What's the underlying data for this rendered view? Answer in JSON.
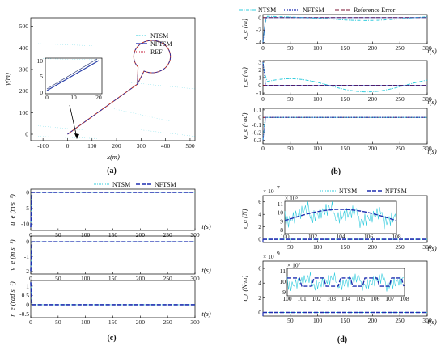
{
  "colors": {
    "ntsm": "#33ccdd",
    "nftsm": "#1f2fb0",
    "ref": "#c41e3a",
    "err": "#7a1030",
    "red_traj": "#c0392b",
    "inset_blue": "#2a3fa8",
    "inset_dark": "#1b2a6e"
  },
  "panels": [
    {
      "key": "a",
      "label": "(a)"
    },
    {
      "key": "b",
      "label": "(b)"
    },
    {
      "key": "c",
      "label": "(c)"
    },
    {
      "key": "d",
      "label": "(d)"
    }
  ],
  "panel_a": {
    "xlabel": "x(m)",
    "ylabel": "y(m)",
    "xticks": [
      "-100",
      "0",
      "100",
      "200",
      "300",
      "400",
      "500"
    ],
    "yticks": [
      "0",
      "100",
      "200",
      "300",
      "400",
      "500"
    ],
    "legend": [
      "NTSM",
      "NFTSM",
      "REF"
    ],
    "inset_xticks": [
      "0",
      "10",
      "20"
    ],
    "inset_yticks": [
      "0",
      "5",
      "10"
    ]
  },
  "panel_b": {
    "legend": [
      "NTSM",
      "NFTSM",
      "Reference Error"
    ],
    "xticks": [
      "0",
      "50",
      "100",
      "150",
      "200",
      "250",
      "300"
    ],
    "time_label": "t(s)",
    "subplots": [
      {
        "ylabel": "x_e (m)",
        "yticks": [
          "0",
          "-2",
          "-4"
        ]
      },
      {
        "ylabel": "y_e (m)",
        "yticks": [
          "3",
          "2",
          "1",
          "0",
          "-1"
        ]
      },
      {
        "ylabel": "ψ_e (rad)",
        "yticks": [
          "0.1",
          "0",
          "-0.1",
          "-0.2",
          "-0.3"
        ]
      }
    ]
  },
  "panel_c": {
    "legend": [
      "NTSM",
      "NFTSM"
    ],
    "xticks": [
      "0",
      "50",
      "100",
      "150",
      "200",
      "250",
      "300"
    ],
    "time_label": "t(s)",
    "subplots": [
      {
        "ylabel": "u_e (m·s⁻¹)",
        "yticks": [
          "0",
          "-5",
          "-10"
        ]
      },
      {
        "ylabel": "v_e (m·s⁻¹)",
        "yticks": [
          "0",
          "-1",
          "-2"
        ]
      },
      {
        "ylabel": "r_e (rad·s⁻¹)",
        "yticks": [
          "1",
          "0.5",
          "0",
          "-0.5"
        ]
      }
    ]
  },
  "panel_d": {
    "legend": [
      "NTSM",
      "NFTSM"
    ],
    "xticks": [
      "50",
      "100",
      "150",
      "200",
      "250",
      "300"
    ],
    "time_label": "t(s)",
    "subplots": [
      {
        "ylabel": "τ_u (N)",
        "multiplier": "× 10",
        "mult_exp": "7",
        "yticks": [
          "6",
          "4",
          "2",
          "0"
        ],
        "inset": {
          "xticks": [
            "100",
            "102",
            "104",
            "106",
            "108"
          ],
          "yticks": [
            "11",
            "10",
            "9",
            "8"
          ],
          "mult": "× 10⁵"
        }
      },
      {
        "ylabel": "τ_r (N·m)",
        "multiplier": "× 10",
        "mult_exp": "9",
        "yticks": [
          "6",
          "4",
          "2",
          "0"
        ],
        "inset": {
          "xticks": [
            "100",
            "101",
            "102",
            "103",
            "104",
            "105",
            "106",
            "107",
            "108"
          ],
          "yticks": [
            "11",
            "10",
            "9"
          ],
          "mult": "× 10⁷"
        }
      }
    ]
  },
  "chart_data": [
    {
      "type": "line",
      "panel": "a",
      "xlabel": "x(m)",
      "ylabel": "y(m)",
      "xlim": [
        -150,
        520
      ],
      "ylim": [
        -30,
        540
      ],
      "series": [
        {
          "name": "NTSM"
        },
        {
          "name": "NFTSM"
        },
        {
          "name": "REF"
        }
      ],
      "path_description_points": [
        [
          0,
          0
        ],
        [
          285,
          235
        ],
        [
          300,
          260
        ],
        [
          260,
          330
        ],
        [
          275,
          410
        ],
        [
          345,
          445
        ],
        [
          410,
          410
        ],
        [
          420,
          330
        ],
        [
          360,
          270
        ],
        [
          300,
          250
        ],
        [
          285,
          235
        ]
      ]
    },
    {
      "type": "line",
      "panel": "b",
      "xlim": [
        0,
        300
      ],
      "subplots": [
        {
          "ylabel": "x_e (m)",
          "ylim": [
            -4.2,
            0.5
          ],
          "series": [
            {
              "name": "NTSM",
              "x": [
                0,
                50,
                100,
                150,
                200,
                250,
                300
              ],
              "y": [
                -4,
                0.2,
                0.15,
                0.05,
                -0.3,
                -0.55,
                -0.1
              ]
            },
            {
              "name": "NFTSM",
              "x": [
                0,
                5,
                300
              ],
              "y": [
                -4,
                0,
                0
              ]
            },
            {
              "name": "Reference Error",
              "x": [
                0,
                300
              ],
              "y": [
                0,
                0
              ]
            }
          ]
        },
        {
          "ylabel": "y_e (m)",
          "ylim": [
            -1.2,
            3.2
          ],
          "series": [
            {
              "name": "NTSM",
              "x": [
                0,
                50,
                100,
                150,
                200,
                250,
                300
              ],
              "y": [
                3,
                0.9,
                0.85,
                0.3,
                -0.7,
                -0.5,
                0.7
              ]
            },
            {
              "name": "NFTSM",
              "x": [
                0,
                5,
                300
              ],
              "y": [
                3,
                0,
                0
              ]
            },
            {
              "name": "Reference Error",
              "x": [
                0,
                300
              ],
              "y": [
                0,
                0
              ]
            }
          ]
        },
        {
          "ylabel": "ψ_e (rad)",
          "ylim": [
            -0.35,
            0.12
          ],
          "series": [
            {
              "name": "NTSM",
              "x": [
                0,
                5,
                300
              ],
              "y": [
                -0.3,
                0,
                0
              ]
            },
            {
              "name": "NFTSM",
              "x": [
                0,
                5,
                300
              ],
              "y": [
                -0.3,
                0,
                0
              ]
            },
            {
              "name": "Reference Error",
              "x": [
                0,
                300
              ],
              "y": [
                0,
                0
              ]
            }
          ]
        }
      ]
    },
    {
      "type": "line",
      "panel": "c",
      "xlim": [
        0,
        300
      ],
      "subplots": [
        {
          "ylabel": "u_e (m·s⁻¹)",
          "ylim": [
            -12,
            1
          ],
          "series": [
            {
              "name": "NTSM",
              "x": [
                0,
                2,
                300
              ],
              "y": [
                -11,
                0,
                0
              ]
            },
            {
              "name": "NFTSM",
              "x": [
                0,
                2,
                300
              ],
              "y": [
                -11,
                0,
                0
              ]
            }
          ]
        },
        {
          "ylabel": "v_e (m·s⁻¹)",
          "ylim": [
            -2.2,
            0.4
          ],
          "series": [
            {
              "name": "NTSM",
              "x": [
                0,
                2,
                300
              ],
              "y": [
                -2,
                0,
                0
              ]
            },
            {
              "name": "NFTSM",
              "x": [
                0,
                2,
                300
              ],
              "y": [
                -2,
                0,
                0
              ]
            }
          ]
        },
        {
          "ylabel": "r_e (rad·s⁻¹)",
          "ylim": [
            -0.7,
            1.3
          ],
          "series": [
            {
              "name": "NTSM",
              "x": [
                0,
                2,
                300
              ],
              "y": [
                1.2,
                0,
                0
              ]
            },
            {
              "name": "NFTSM",
              "x": [
                0,
                2,
                300
              ],
              "y": [
                1.2,
                0,
                0
              ]
            }
          ]
        }
      ]
    },
    {
      "type": "line",
      "panel": "d",
      "xlim": [
        0,
        300
      ],
      "subplots": [
        {
          "ylabel": "τ_u (N)",
          "ylim": [
            -0.5,
            7
          ],
          "series": [
            {
              "name": "NTSM",
              "x": [
                0,
                300
              ],
              "y": [
                0,
                0
              ]
            },
            {
              "name": "NFTSM",
              "x": [
                0,
                300
              ],
              "y": [
                0,
                0
              ]
            }
          ]
        },
        {
          "ylabel": "τ_r (N·m)",
          "ylim": [
            -0.5,
            7
          ],
          "series": [
            {
              "name": "NTSM",
              "x": [
                0,
                300
              ],
              "y": [
                0,
                0
              ]
            },
            {
              "name": "NFTSM",
              "x": [
                0,
                300
              ],
              "y": [
                0,
                0
              ]
            }
          ]
        }
      ]
    }
  ]
}
